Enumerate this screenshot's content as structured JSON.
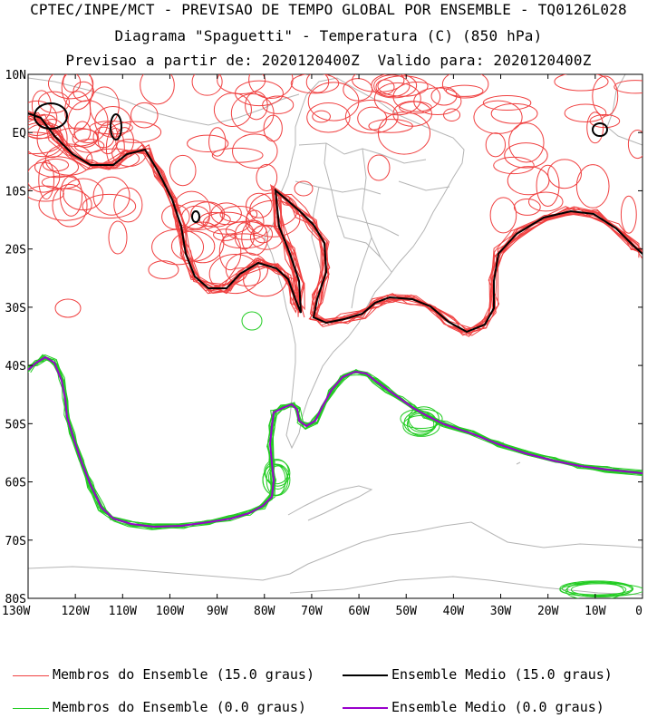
{
  "title": {
    "line1": "CPTEC/INPE/MCT - PREVISAO DE TEMPO GLOBAL POR ENSEMBLE - TQ0126L028",
    "line2": "Diagrama \"Spaguetti\" - Temperatura (C) (850 hPa)",
    "line3": "Previsao a partir de: 2020120400Z  Valido para: 2020120400Z"
  },
  "map": {
    "lat_labels": [
      "10N",
      "EQ",
      "10S",
      "20S",
      "30S",
      "40S",
      "50S",
      "60S",
      "70S",
      "80S"
    ],
    "lat_values": [
      10,
      0,
      -10,
      -20,
      -30,
      -40,
      -50,
      -60,
      -70,
      -80
    ],
    "lon_labels": [
      "130W",
      "120W",
      "110W",
      "100W",
      "90W",
      "80W",
      "70W",
      "60W",
      "50W",
      "40W",
      "30W",
      "20W",
      "10W",
      "0"
    ],
    "lon_values": [
      -130,
      -120,
      -110,
      -100,
      -90,
      -80,
      -70,
      -60,
      -50,
      -40,
      -30,
      -20,
      -10,
      0
    ],
    "lon_range": [
      -130,
      0
    ],
    "lat_range": [
      -80,
      10
    ],
    "colors": {
      "members_15": "#f04040",
      "mean_15": "#000000",
      "members_0": "#22cc22",
      "mean_0": "#9900cc",
      "coast": "#b4b4b4"
    }
  },
  "legend": {
    "members_15": "Membros do Ensemble (15.0 graus)",
    "mean_15": "Ensemble Medio (15.0 graus)",
    "members_0": "Membros do Ensemble (0.0 graus)",
    "mean_0": "Ensemble Medio (0.0 graus)"
  }
}
